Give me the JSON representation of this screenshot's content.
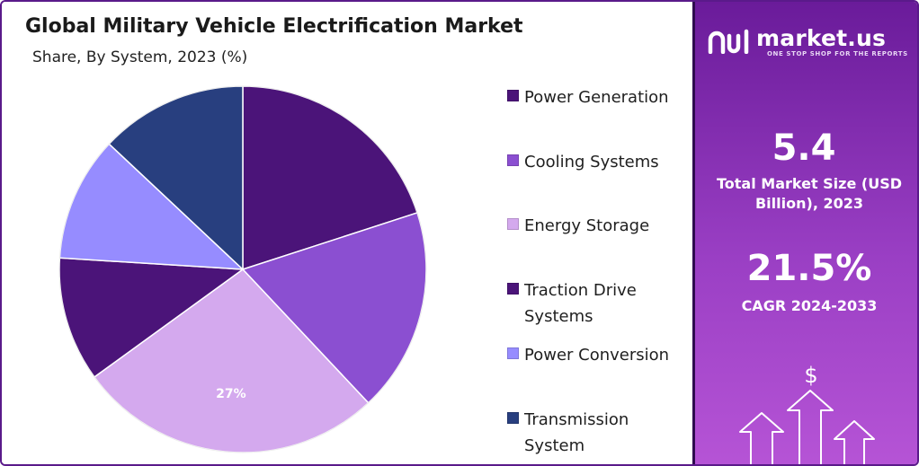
{
  "title": "Global Military Vehicle Electrification Market",
  "subtitle": "Share, By System, 2023 (%)",
  "chart_data": {
    "type": "pie",
    "title": "Global Military Vehicle Electrification Market",
    "subtitle": "Share, By System, 2023 (%)",
    "start_angle_deg": 0,
    "direction": "clockwise",
    "slices": [
      {
        "label": "Power Generation",
        "value": 20,
        "color": "#4b1479"
      },
      {
        "label": "Cooling Systems",
        "value": 18,
        "color": "#8b4fd1"
      },
      {
        "label": "Energy Storage",
        "value": 27,
        "color": "#d4a9ee",
        "data_label": "27%"
      },
      {
        "label": "Traction Drive Systems",
        "value": 11,
        "color": "#4b1479"
      },
      {
        "label": "Power Conversion",
        "value": 11,
        "color": "#968cff"
      },
      {
        "label": "Transmission System",
        "value": 13,
        "color": "#283f7f"
      }
    ],
    "legend_position": "right"
  },
  "legend": [
    {
      "label": "Power Generation",
      "color": "#4b1479"
    },
    {
      "label": "Cooling Systems",
      "color": "#8b4fd1"
    },
    {
      "label": "Energy Storage",
      "color": "#d4a9ee"
    },
    {
      "label": "Traction Drive Systems",
      "color": "#4b1479"
    },
    {
      "label": "Power Conversion",
      "color": "#968cff"
    },
    {
      "label": "Transmission System",
      "color": "#283f7f"
    }
  ],
  "sidebar": {
    "logo_text": "market.us",
    "logo_tagline": "ONE STOP SHOP FOR THE REPORTS",
    "market_size_value": "5.4",
    "market_size_label": "Total Market Size (USD Billion), 2023",
    "cagr_value": "21.5%",
    "cagr_label": "CAGR 2024-2033",
    "dollar_symbol": "$"
  },
  "colors": {
    "panel_top": "#6a1b9a",
    "panel_bottom": "#b654d6",
    "frame": "#5a1a8a"
  }
}
